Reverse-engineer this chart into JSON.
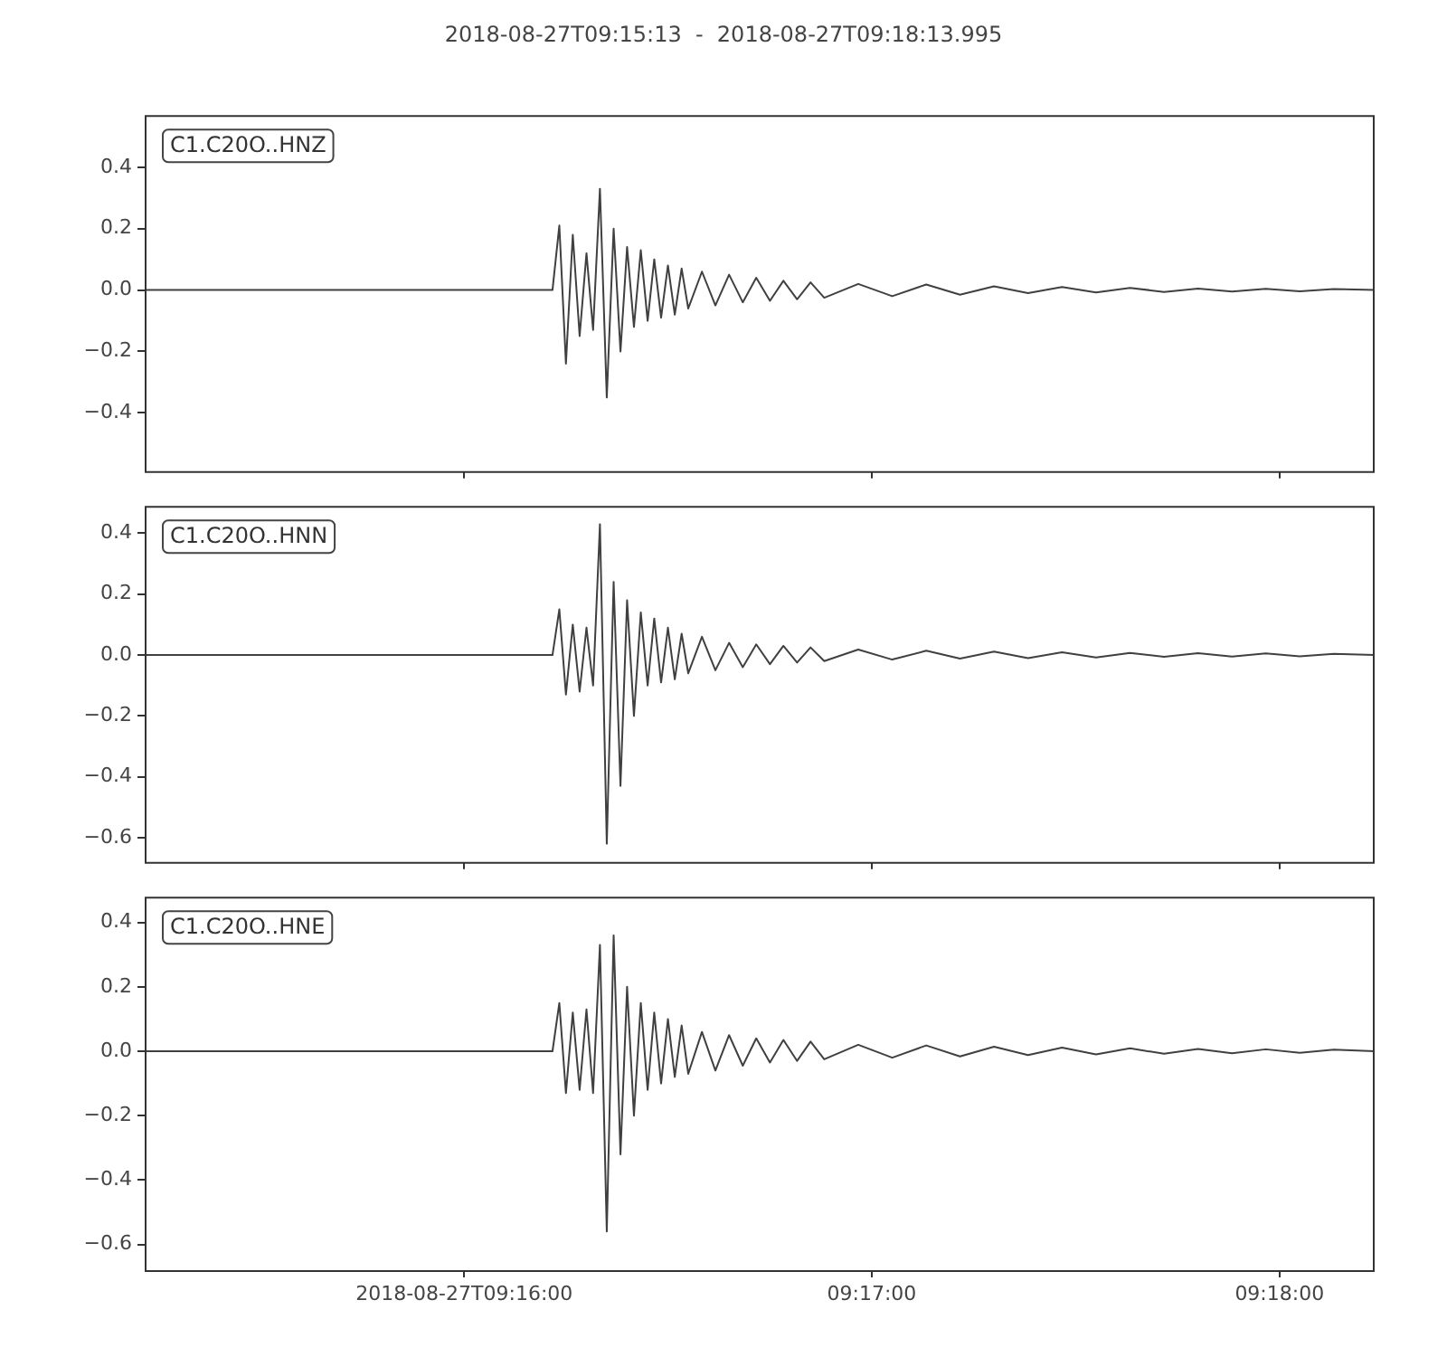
{
  "chart_data": [
    {
      "type": "line",
      "title": "2018-08-27T09:15:13  -  2018-08-27T09:18:13.995",
      "annotations": [
        "C1.C20O..HNZ"
      ],
      "x": [
        9.25361,
        9.26194,
        9.27,
        9.27028,
        9.27056,
        9.27083,
        9.27111,
        9.27139,
        9.27167,
        9.27194,
        9.27222,
        9.2725,
        9.27278,
        9.27306,
        9.27333,
        9.27361,
        9.27389,
        9.27417,
        9.27444,
        9.27472,
        9.275,
        9.27528,
        9.27556,
        9.27583,
        9.27639,
        9.27694,
        9.2775,
        9.27806,
        9.27861,
        9.27917,
        9.27972,
        9.28028,
        9.28083,
        9.28139,
        9.28278,
        9.28417,
        9.28556,
        9.28694,
        9.28833,
        9.28972,
        9.29111,
        9.2925,
        9.29389,
        9.29528,
        9.29667,
        9.29806,
        9.29944,
        9.30083,
        9.30222,
        9.30389
      ],
      "series": [
        {
          "color": "#404040",
          "values": [
            0,
            0,
            0,
            0,
            0.21,
            -0.24,
            0.18,
            -0.15,
            0.12,
            -0.13,
            0.33,
            -0.35,
            0.2,
            -0.2,
            0.14,
            -0.12,
            0.13,
            -0.1,
            0.1,
            -0.09,
            0.08,
            -0.08,
            0.07,
            -0.06,
            0.06,
            -0.05,
            0.05,
            -0.04,
            0.04,
            -0.035,
            0.03,
            -0.03,
            0.025,
            -0.025,
            0.02,
            -0.02,
            0.018,
            -0.015,
            0.012,
            -0.01,
            0.01,
            -0.008,
            0.007,
            -0.006,
            0.005,
            -0.005,
            0.004,
            -0.004,
            0.003,
            0
          ]
        }
      ],
      "xlim": [
        9.25361,
        9.30389
      ],
      "xticks": [
        {
          "value": 9.26667,
          "label": null
        },
        {
          "value": 9.28333,
          "label": null
        },
        {
          "value": 9.3,
          "label": null
        }
      ],
      "ylim": [
        -0.59,
        0.57
      ],
      "yticks": [
        {
          "value": -0.4,
          "label": "−0.4"
        },
        {
          "value": -0.2,
          "label": "−0.2"
        },
        {
          "value": 0,
          "label": "0.0"
        },
        {
          "value": 0.2,
          "label": "0.2"
        },
        {
          "value": 0.4,
          "label": "0.4"
        }
      ],
      "tick_labels": "y",
      "grid": false
    },
    {
      "type": "line",
      "annotations": [
        "C1.C20O..HNN"
      ],
      "x": [
        9.25361,
        9.26194,
        9.27,
        9.27028,
        9.27056,
        9.27083,
        9.27111,
        9.27139,
        9.27167,
        9.27194,
        9.27222,
        9.2725,
        9.27278,
        9.27306,
        9.27333,
        9.27361,
        9.27389,
        9.27417,
        9.27444,
        9.27472,
        9.275,
        9.27528,
        9.27556,
        9.27583,
        9.27639,
        9.27694,
        9.2775,
        9.27806,
        9.27861,
        9.27917,
        9.27972,
        9.28028,
        9.28083,
        9.28139,
        9.28278,
        9.28417,
        9.28556,
        9.28694,
        9.28833,
        9.28972,
        9.29111,
        9.2925,
        9.29389,
        9.29528,
        9.29667,
        9.29806,
        9.29944,
        9.30083,
        9.30222,
        9.30389
      ],
      "series": [
        {
          "color": "#404040",
          "values": [
            0,
            0,
            0,
            0,
            0.15,
            -0.13,
            0.1,
            -0.12,
            0.09,
            -0.1,
            0.43,
            -0.62,
            0.24,
            -0.43,
            0.18,
            -0.2,
            0.14,
            -0.1,
            0.12,
            -0.09,
            0.09,
            -0.08,
            0.07,
            -0.06,
            0.06,
            -0.05,
            0.04,
            -0.04,
            0.035,
            -0.03,
            0.03,
            -0.025,
            0.025,
            -0.02,
            0.018,
            -0.015,
            0.014,
            -0.012,
            0.011,
            -0.01,
            0.009,
            -0.008,
            0.007,
            -0.006,
            0.006,
            -0.005,
            0.005,
            -0.004,
            0.004,
            0
          ]
        }
      ],
      "xlim": [
        9.25361,
        9.30389
      ],
      "xticks": [
        {
          "value": 9.26667,
          "label": null
        },
        {
          "value": 9.28333,
          "label": null
        },
        {
          "value": 9.3,
          "label": null
        }
      ],
      "ylim": [
        -0.68,
        0.49
      ],
      "yticks": [
        {
          "value": -0.6,
          "label": "−0.6"
        },
        {
          "value": -0.4,
          "label": "−0.4"
        },
        {
          "value": -0.2,
          "label": "−0.2"
        },
        {
          "value": 0,
          "label": "0.0"
        },
        {
          "value": 0.2,
          "label": "0.2"
        },
        {
          "value": 0.4,
          "label": "0.4"
        }
      ],
      "tick_labels": "y",
      "grid": false
    },
    {
      "type": "line",
      "annotations": [
        "C1.C20O..HNE"
      ],
      "x": [
        9.25361,
        9.26194,
        9.27,
        9.27028,
        9.27056,
        9.27083,
        9.27111,
        9.27139,
        9.27167,
        9.27194,
        9.27222,
        9.2725,
        9.27278,
        9.27306,
        9.27333,
        9.27361,
        9.27389,
        9.27417,
        9.27444,
        9.27472,
        9.275,
        9.27528,
        9.27556,
        9.27583,
        9.27639,
        9.27694,
        9.2775,
        9.27806,
        9.27861,
        9.27917,
        9.27972,
        9.28028,
        9.28083,
        9.28139,
        9.28278,
        9.28417,
        9.28556,
        9.28694,
        9.28833,
        9.28972,
        9.29111,
        9.2925,
        9.29389,
        9.29528,
        9.29667,
        9.29806,
        9.29944,
        9.30083,
        9.30222,
        9.30389
      ],
      "series": [
        {
          "color": "#404040",
          "values": [
            0,
            0,
            0,
            0,
            0.15,
            -0.13,
            0.12,
            -0.12,
            0.13,
            -0.13,
            0.33,
            -0.56,
            0.36,
            -0.32,
            0.2,
            -0.2,
            0.15,
            -0.12,
            0.12,
            -0.1,
            0.1,
            -0.08,
            0.08,
            -0.07,
            0.06,
            -0.06,
            0.05,
            -0.045,
            0.04,
            -0.035,
            0.035,
            -0.03,
            0.03,
            -0.025,
            0.02,
            -0.02,
            0.018,
            -0.016,
            0.014,
            -0.012,
            0.011,
            -0.01,
            0.009,
            -0.008,
            0.007,
            -0.006,
            0.006,
            -0.005,
            0.005,
            0
          ]
        }
      ],
      "xlim": [
        9.25361,
        9.30389
      ],
      "xticks": [
        {
          "value": 9.26667,
          "label": "2018-08-27T09:16:00"
        },
        {
          "value": 9.28333,
          "label": "09:17:00"
        },
        {
          "value": 9.3,
          "label": "09:18:00"
        }
      ],
      "ylim": [
        -0.68,
        0.48
      ],
      "yticks": [
        {
          "value": -0.6,
          "label": "−0.6"
        },
        {
          "value": -0.4,
          "label": "−0.4"
        },
        {
          "value": -0.2,
          "label": "−0.2"
        },
        {
          "value": 0,
          "label": "0.0"
        },
        {
          "value": 0.2,
          "label": "0.2"
        },
        {
          "value": 0.4,
          "label": "0.4"
        }
      ],
      "grid": false
    }
  ]
}
